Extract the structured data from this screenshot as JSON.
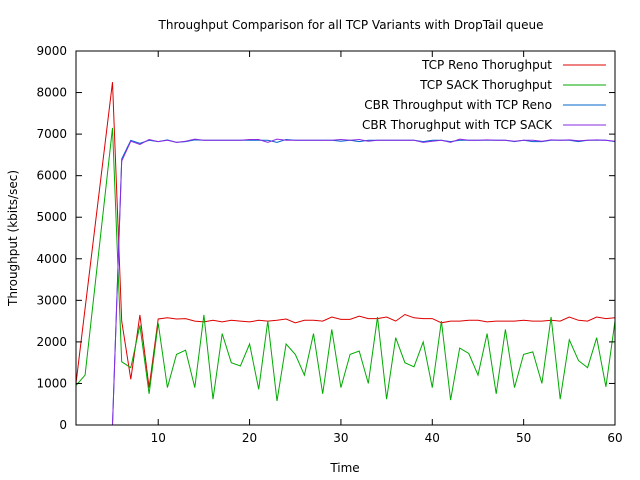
{
  "chart_data": {
    "type": "line",
    "title": "Throughput Comparison for all TCP Variants with DropTail queue",
    "xlabel": "Time",
    "ylabel": "Throughput (kbits/sec)",
    "xlim": [
      1,
      60
    ],
    "ylim": [
      0,
      9000
    ],
    "xticks": [
      10,
      20,
      30,
      40,
      50,
      60
    ],
    "yticks": [
      0,
      1000,
      2000,
      3000,
      4000,
      5000,
      6000,
      7000,
      8000,
      9000
    ],
    "grid": false,
    "legend_position": "top-right",
    "series": [
      {
        "name": "TCP Reno Thorughput",
        "color": "#dd0000",
        "points": [
          [
            1,
            1000
          ],
          [
            5,
            8250
          ],
          [
            6,
            2500
          ],
          [
            7,
            1100
          ],
          [
            8,
            2650
          ],
          [
            9,
            900
          ],
          [
            10,
            2550
          ],
          [
            11,
            2580
          ],
          [
            12,
            2550
          ],
          [
            13,
            2560
          ],
          [
            14,
            2500
          ],
          [
            15,
            2480
          ],
          [
            16,
            2520
          ],
          [
            17,
            2480
          ],
          [
            18,
            2520
          ],
          [
            19,
            2500
          ],
          [
            20,
            2480
          ],
          [
            21,
            2520
          ],
          [
            22,
            2500
          ],
          [
            23,
            2520
          ],
          [
            24,
            2550
          ],
          [
            25,
            2460
          ],
          [
            26,
            2520
          ],
          [
            27,
            2520
          ],
          [
            28,
            2500
          ],
          [
            29,
            2600
          ],
          [
            30,
            2540
          ],
          [
            31,
            2540
          ],
          [
            32,
            2620
          ],
          [
            33,
            2560
          ],
          [
            34,
            2560
          ],
          [
            35,
            2600
          ],
          [
            36,
            2500
          ],
          [
            37,
            2660
          ],
          [
            38,
            2580
          ],
          [
            39,
            2560
          ],
          [
            40,
            2560
          ],
          [
            41,
            2460
          ],
          [
            42,
            2500
          ],
          [
            43,
            2500
          ],
          [
            44,
            2520
          ],
          [
            45,
            2520
          ],
          [
            46,
            2480
          ],
          [
            47,
            2500
          ],
          [
            48,
            2500
          ],
          [
            49,
            2500
          ],
          [
            50,
            2520
          ],
          [
            51,
            2500
          ],
          [
            52,
            2500
          ],
          [
            53,
            2520
          ],
          [
            54,
            2500
          ],
          [
            55,
            2600
          ],
          [
            56,
            2520
          ],
          [
            57,
            2500
          ],
          [
            58,
            2600
          ],
          [
            59,
            2560
          ],
          [
            60,
            2580
          ]
        ]
      },
      {
        "name": "TCP SACK Thorughput",
        "color": "#00aa00",
        "points": [
          [
            1,
            950
          ],
          [
            2,
            1200
          ],
          [
            5,
            7150
          ],
          [
            6,
            1520
          ],
          [
            7,
            1380
          ],
          [
            8,
            2400
          ],
          [
            9,
            750
          ],
          [
            10,
            2450
          ],
          [
            11,
            900
          ],
          [
            12,
            1700
          ],
          [
            13,
            1800
          ],
          [
            14,
            900
          ],
          [
            15,
            2650
          ],
          [
            16,
            620
          ],
          [
            17,
            2200
          ],
          [
            18,
            1500
          ],
          [
            19,
            1420
          ],
          [
            20,
            1950
          ],
          [
            21,
            860
          ],
          [
            22,
            2500
          ],
          [
            23,
            580
          ],
          [
            24,
            1950
          ],
          [
            25,
            1700
          ],
          [
            26,
            1200
          ],
          [
            27,
            2200
          ],
          [
            28,
            750
          ],
          [
            29,
            2300
          ],
          [
            30,
            900
          ],
          [
            31,
            1700
          ],
          [
            32,
            1780
          ],
          [
            33,
            1000
          ],
          [
            34,
            2600
          ],
          [
            35,
            620
          ],
          [
            36,
            2100
          ],
          [
            37,
            1500
          ],
          [
            38,
            1400
          ],
          [
            39,
            2000
          ],
          [
            40,
            900
          ],
          [
            41,
            2500
          ],
          [
            42,
            600
          ],
          [
            43,
            1850
          ],
          [
            44,
            1720
          ],
          [
            45,
            1200
          ],
          [
            46,
            2200
          ],
          [
            47,
            750
          ],
          [
            48,
            2300
          ],
          [
            49,
            900
          ],
          [
            50,
            1700
          ],
          [
            51,
            1760
          ],
          [
            52,
            1000
          ],
          [
            53,
            2600
          ],
          [
            54,
            620
          ],
          [
            55,
            2050
          ],
          [
            56,
            1550
          ],
          [
            57,
            1380
          ],
          [
            58,
            2100
          ],
          [
            59,
            920
          ],
          [
            60,
            2500
          ]
        ]
      },
      {
        "name": "CBR Throughput with TCP Reno",
        "color": "#0066cc",
        "points": [
          [
            5,
            0
          ],
          [
            6,
            6400
          ],
          [
            7,
            6850
          ],
          [
            8,
            6780
          ],
          [
            9,
            6850
          ],
          [
            10,
            6820
          ],
          [
            11,
            6860
          ],
          [
            12,
            6800
          ],
          [
            13,
            6820
          ],
          [
            14,
            6860
          ],
          [
            15,
            6850
          ],
          [
            16,
            6850
          ],
          [
            17,
            6850
          ],
          [
            18,
            6850
          ],
          [
            19,
            6850
          ],
          [
            20,
            6850
          ],
          [
            21,
            6850
          ],
          [
            22,
            6850
          ],
          [
            23,
            6800
          ],
          [
            24,
            6870
          ],
          [
            25,
            6850
          ],
          [
            26,
            6850
          ],
          [
            27,
            6850
          ],
          [
            28,
            6850
          ],
          [
            29,
            6850
          ],
          [
            30,
            6830
          ],
          [
            31,
            6850
          ],
          [
            32,
            6820
          ],
          [
            33,
            6850
          ],
          [
            34,
            6850
          ],
          [
            35,
            6850
          ],
          [
            36,
            6850
          ],
          [
            37,
            6850
          ],
          [
            38,
            6850
          ],
          [
            39,
            6820
          ],
          [
            40,
            6850
          ],
          [
            41,
            6850
          ],
          [
            42,
            6820
          ],
          [
            43,
            6850
          ],
          [
            44,
            6850
          ],
          [
            45,
            6850
          ],
          [
            46,
            6850
          ],
          [
            47,
            6850
          ],
          [
            48,
            6850
          ],
          [
            49,
            6820
          ],
          [
            50,
            6850
          ],
          [
            51,
            6820
          ],
          [
            52,
            6820
          ],
          [
            53,
            6850
          ],
          [
            54,
            6850
          ],
          [
            55,
            6850
          ],
          [
            56,
            6820
          ],
          [
            57,
            6850
          ],
          [
            58,
            6850
          ],
          [
            59,
            6850
          ],
          [
            60,
            6820
          ]
        ]
      },
      {
        "name": "CBR Thorughput with TCP SACK",
        "color": "#8a2be2",
        "points": [
          [
            5,
            0
          ],
          [
            6,
            6350
          ],
          [
            7,
            6830
          ],
          [
            8,
            6750
          ],
          [
            9,
            6870
          ],
          [
            10,
            6820
          ],
          [
            11,
            6850
          ],
          [
            12,
            6800
          ],
          [
            13,
            6830
          ],
          [
            14,
            6880
          ],
          [
            15,
            6850
          ],
          [
            16,
            6850
          ],
          [
            17,
            6850
          ],
          [
            18,
            6850
          ],
          [
            19,
            6850
          ],
          [
            20,
            6870
          ],
          [
            21,
            6870
          ],
          [
            22,
            6800
          ],
          [
            23,
            6880
          ],
          [
            24,
            6850
          ],
          [
            25,
            6850
          ],
          [
            26,
            6850
          ],
          [
            27,
            6850
          ],
          [
            28,
            6850
          ],
          [
            29,
            6850
          ],
          [
            30,
            6870
          ],
          [
            31,
            6850
          ],
          [
            32,
            6870
          ],
          [
            33,
            6830
          ],
          [
            34,
            6850
          ],
          [
            35,
            6850
          ],
          [
            36,
            6850
          ],
          [
            37,
            6850
          ],
          [
            38,
            6850
          ],
          [
            39,
            6800
          ],
          [
            40,
            6830
          ],
          [
            41,
            6850
          ],
          [
            42,
            6800
          ],
          [
            43,
            6880
          ],
          [
            44,
            6850
          ],
          [
            45,
            6850
          ],
          [
            46,
            6860
          ],
          [
            47,
            6850
          ],
          [
            48,
            6850
          ],
          [
            49,
            6830
          ],
          [
            50,
            6850
          ],
          [
            51,
            6850
          ],
          [
            52,
            6830
          ],
          [
            53,
            6860
          ],
          [
            54,
            6850
          ],
          [
            55,
            6860
          ],
          [
            56,
            6840
          ],
          [
            57,
            6850
          ],
          [
            58,
            6860
          ],
          [
            59,
            6850
          ],
          [
            60,
            6830
          ]
        ]
      }
    ]
  }
}
